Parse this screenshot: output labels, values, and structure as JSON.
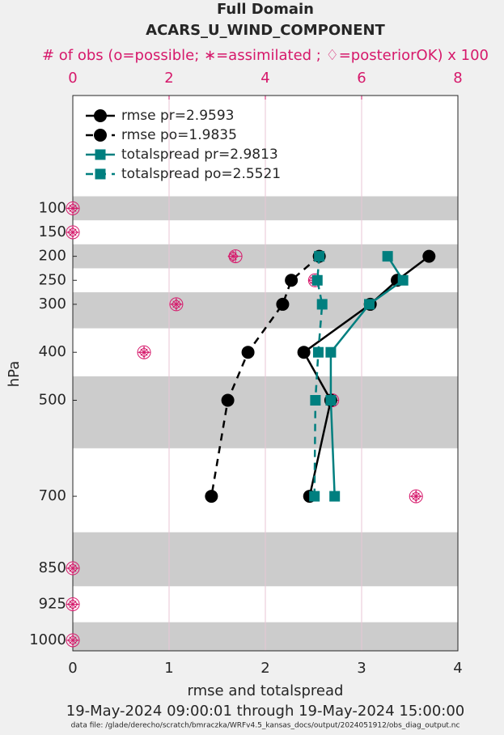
{
  "chart_data": {
    "type": "profile",
    "title": "Full Domain",
    "subtitle": "ACARS_U_WIND_COMPONENT",
    "x2_label": "# of obs (o=possible; ∗=assimilated ; ♢=posteriorOK) x 100",
    "xlabel": "rmse and totalspread",
    "ylabel": "hPa",
    "date_range": "19-May-2024 09:00:01 through 19-May-2024 15:00:00",
    "data_file": "data file: /glade/derecho/scratch/bmraczka/WRFv4.5_kansas_docs/output/2024051912/obs_diag_output.nc",
    "levels": [
      100,
      150,
      200,
      250,
      300,
      400,
      500,
      700,
      850,
      925,
      1000
    ],
    "xlim": [
      0,
      4
    ],
    "xticks": [
      0,
      1,
      2,
      3,
      4
    ],
    "x2lim": [
      0,
      8
    ],
    "x2ticks": [
      0,
      2,
      4,
      6,
      8
    ],
    "ylim": [
      -135,
      1022
    ],
    "y_reversed": true,
    "yticks": [
      100,
      150,
      200,
      250,
      300,
      400,
      500,
      700,
      850,
      925,
      1000
    ],
    "grid": true,
    "bands": [
      [
        75,
        125
      ],
      [
        175,
        225
      ],
      [
        275,
        350
      ],
      [
        450,
        600
      ],
      [
        775,
        887.5
      ],
      [
        962.5,
        1037.5
      ]
    ],
    "series": [
      {
        "name": "rmse pr=2.9593",
        "color": "#000000",
        "marker": "circle",
        "dashed": false,
        "values": [
          null,
          null,
          3.7,
          3.37,
          3.09,
          2.4,
          2.68,
          2.46,
          null,
          null,
          null
        ]
      },
      {
        "name": "rmse po=1.9835",
        "color": "#000000",
        "marker": "circle",
        "dashed": true,
        "values": [
          null,
          null,
          2.56,
          2.27,
          2.18,
          1.82,
          1.61,
          1.44,
          null,
          null,
          null
        ]
      },
      {
        "name": "totalspread pr=2.9813",
        "color": "#007f7f",
        "marker": "square",
        "dashed": false,
        "values": [
          null,
          null,
          3.27,
          3.43,
          3.08,
          2.68,
          2.68,
          2.72,
          null,
          null,
          null
        ]
      },
      {
        "name": "totalspread po=2.5521",
        "color": "#007f7f",
        "marker": "square",
        "dashed": true,
        "values": [
          null,
          null,
          2.56,
          2.54,
          2.59,
          2.55,
          2.52,
          2.51,
          null,
          null,
          null
        ]
      }
    ],
    "obs_series": [
      {
        "color": "#d6196b",
        "marker": "circle-plus",
        "axis": "x2",
        "values": [
          0,
          0,
          3.38,
          5.03,
          2.15,
          1.48,
          5.39,
          7.13,
          0,
          0,
          0
        ]
      },
      {
        "color": "#d6196b",
        "marker": "asterisk",
        "axis": "x2",
        "values": [
          0,
          0,
          3.33,
          5.0,
          2.15,
          1.48,
          5.36,
          7.13,
          0,
          0,
          0
        ]
      }
    ]
  }
}
